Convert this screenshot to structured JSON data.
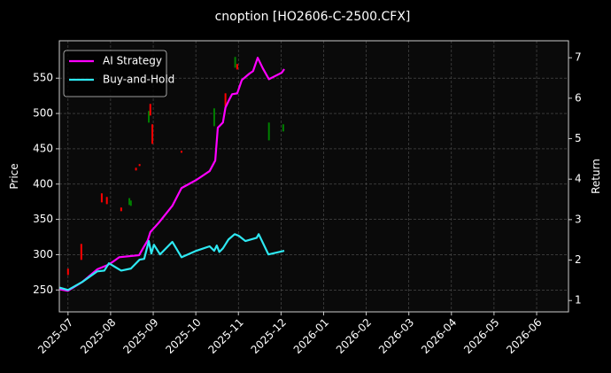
{
  "chart_data": {
    "type": "candlestick",
    "title": "cnoption [HO2606-C-2500.CFX]",
    "ylabel": "Price",
    "y2label": "Return",
    "grid": true,
    "legend": "upper left",
    "xlim": [
      2025.483,
      2026.479
    ],
    "xticks": [
      {
        "value": 2025.5,
        "label": "2025-07"
      },
      {
        "value": 2025.5833,
        "label": "2025-08"
      },
      {
        "value": 2025.6667,
        "label": "2025-09"
      },
      {
        "value": 2025.75,
        "label": "2025-10"
      },
      {
        "value": 2025.8333,
        "label": "2025-11"
      },
      {
        "value": 2025.9167,
        "label": "2025-12"
      },
      {
        "value": 2026.0,
        "label": "2026-01"
      },
      {
        "value": 2026.0833,
        "label": "2026-02"
      },
      {
        "value": 2026.1667,
        "label": "2026-03"
      },
      {
        "value": 2026.25,
        "label": "2026-04"
      },
      {
        "value": 2026.3333,
        "label": "2026-05"
      },
      {
        "value": 2026.4167,
        "label": "2026-06"
      }
    ],
    "ylim": [
      219,
      603
    ],
    "yticks": [
      250,
      300,
      350,
      400,
      450,
      500,
      550
    ],
    "y2lim": [
      0.72,
      7.42
    ],
    "y2ticks": [
      1,
      2,
      3,
      4,
      5,
      6,
      7
    ],
    "candles": {
      "up_color": "#008000",
      "down_color": "#ff0000",
      "x": [
        2025.5,
        2025.526,
        2025.566,
        2025.576,
        2025.604,
        2025.62,
        2025.623,
        2025.633,
        2025.64,
        2025.658,
        2025.661,
        2025.665,
        2025.722,
        2025.786,
        2025.808,
        2025.827,
        2025.831,
        2025.893,
        2025.921
      ],
      "open": [
        280.1,
        315.2,
        386.8,
        381.7,
        366.7,
        370.5,
        369.2,
        423.1,
        428.2,
        487.1,
        513.5,
        484.6,
        447,
        482.1,
        528.5,
        564.9,
        570,
        462,
        474.6
      ],
      "high": [
        280.1,
        315.2,
        386.8,
        381.7,
        366.7,
        380,
        376.7,
        423.1,
        428.2,
        503.4,
        513.5,
        484.6,
        447,
        507.2,
        528.5,
        580,
        570,
        487.1,
        484.6
      ],
      "low": [
        271.3,
        292.7,
        374.2,
        371.7,
        361.7,
        370.5,
        369.2,
        419.4,
        425.7,
        487.1,
        497.2,
        457,
        444.5,
        482.1,
        509.7,
        564.9,
        562.4,
        462,
        474.6
      ],
      "close": [
        271.3,
        292.7,
        374.2,
        371.7,
        361.7,
        380,
        376.7,
        419.4,
        425.7,
        503.4,
        497.2,
        457,
        444.5,
        507.2,
        509.7,
        580,
        562.4,
        487.1,
        484.6
      ]
    },
    "series": [
      {
        "name": "AI Strategy",
        "color": "#ff00ff",
        "axis": "y2",
        "x": [
          2025.483,
          2025.5,
          2025.528,
          2025.557,
          2025.578,
          2025.588,
          2025.6,
          2025.639,
          2025.649,
          2025.656,
          2025.661,
          2025.678,
          2025.704,
          2025.722,
          2025.751,
          2025.777,
          2025.788,
          2025.793,
          2025.803,
          2025.808,
          2025.814,
          2025.821,
          2025.831,
          2025.84,
          2025.855,
          2025.862,
          2025.871,
          2025.881,
          2025.893,
          2025.918,
          2025.923
        ],
        "values": [
          1.28,
          1.24,
          1.46,
          1.77,
          1.88,
          1.96,
          2.07,
          2.12,
          2.34,
          2.49,
          2.69,
          2.93,
          3.34,
          3.78,
          3.98,
          4.2,
          4.46,
          5.27,
          5.4,
          5.77,
          5.93,
          6.1,
          6.12,
          6.45,
          6.61,
          6.67,
          7.0,
          6.74,
          6.47,
          6.63,
          6.72
        ]
      },
      {
        "name": "Buy-and-Hold",
        "color": "#2ee8f2",
        "axis": "y2",
        "x": [
          2025.483,
          2025.5,
          2025.528,
          2025.557,
          2025.571,
          2025.58,
          2025.604,
          2025.623,
          2025.64,
          2025.649,
          2025.658,
          2025.663,
          2025.668,
          2025.68,
          2025.704,
          2025.722,
          2025.751,
          2025.777,
          2025.786,
          2025.791,
          2025.796,
          2025.803,
          2025.814,
          2025.826,
          2025.834,
          2025.847,
          2025.869,
          2025.873,
          2025.892,
          2025.923
        ],
        "values": [
          1.32,
          1.26,
          1.46,
          1.72,
          1.74,
          1.92,
          1.74,
          1.79,
          2.01,
          2.03,
          2.47,
          2.16,
          2.38,
          2.14,
          2.45,
          2.07,
          2.23,
          2.34,
          2.23,
          2.36,
          2.2,
          2.29,
          2.51,
          2.64,
          2.6,
          2.47,
          2.55,
          2.64,
          2.14,
          2.23
        ]
      }
    ]
  }
}
